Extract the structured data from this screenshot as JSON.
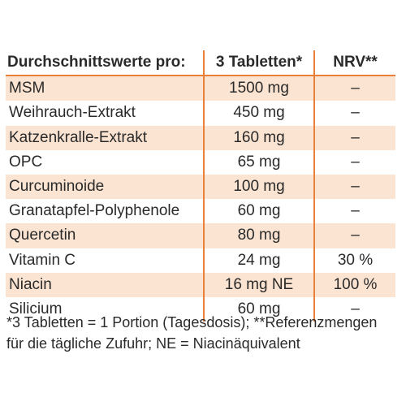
{
  "table": {
    "header": {
      "name": "Durchschnittswerte pro:",
      "amount": "3 Tabletten*",
      "nrv": "NRV**"
    },
    "rows": [
      {
        "name": "MSM",
        "amount": "1500 mg",
        "nrv": "–"
      },
      {
        "name": "Weihrauch-Extrakt",
        "amount": "450 mg",
        "nrv": "–"
      },
      {
        "name": "Katzenkralle-Extrakt",
        "amount": "160 mg",
        "nrv": "–"
      },
      {
        "name": "OPC",
        "amount": "65 mg",
        "nrv": "–"
      },
      {
        "name": "Curcuminoide",
        "amount": "100 mg",
        "nrv": "–"
      },
      {
        "name": "Granatapfel-Polyphenole",
        "amount": "60 mg",
        "nrv": "–"
      },
      {
        "name": "Quercetin",
        "amount": "80 mg",
        "nrv": "–"
      },
      {
        "name": "Vitamin C",
        "amount": "24 mg",
        "nrv": "30 %"
      },
      {
        "name": "Niacin",
        "amount": "16 mg NE",
        "nrv": "100 %"
      },
      {
        "name": "Silicium",
        "amount": "60 mg",
        "nrv": "–"
      }
    ]
  },
  "footnote": {
    "line1": "*3 Tabletten = 1 Portion (Tagesdosis); **Referenzmengen",
    "line2": "für die tägliche Zufuhr; NE = Niacinäquivalent"
  },
  "colors": {
    "accent_orange": "#e8803a",
    "row_shade": "#fbe4d2",
    "text": "#2a2a2a"
  }
}
